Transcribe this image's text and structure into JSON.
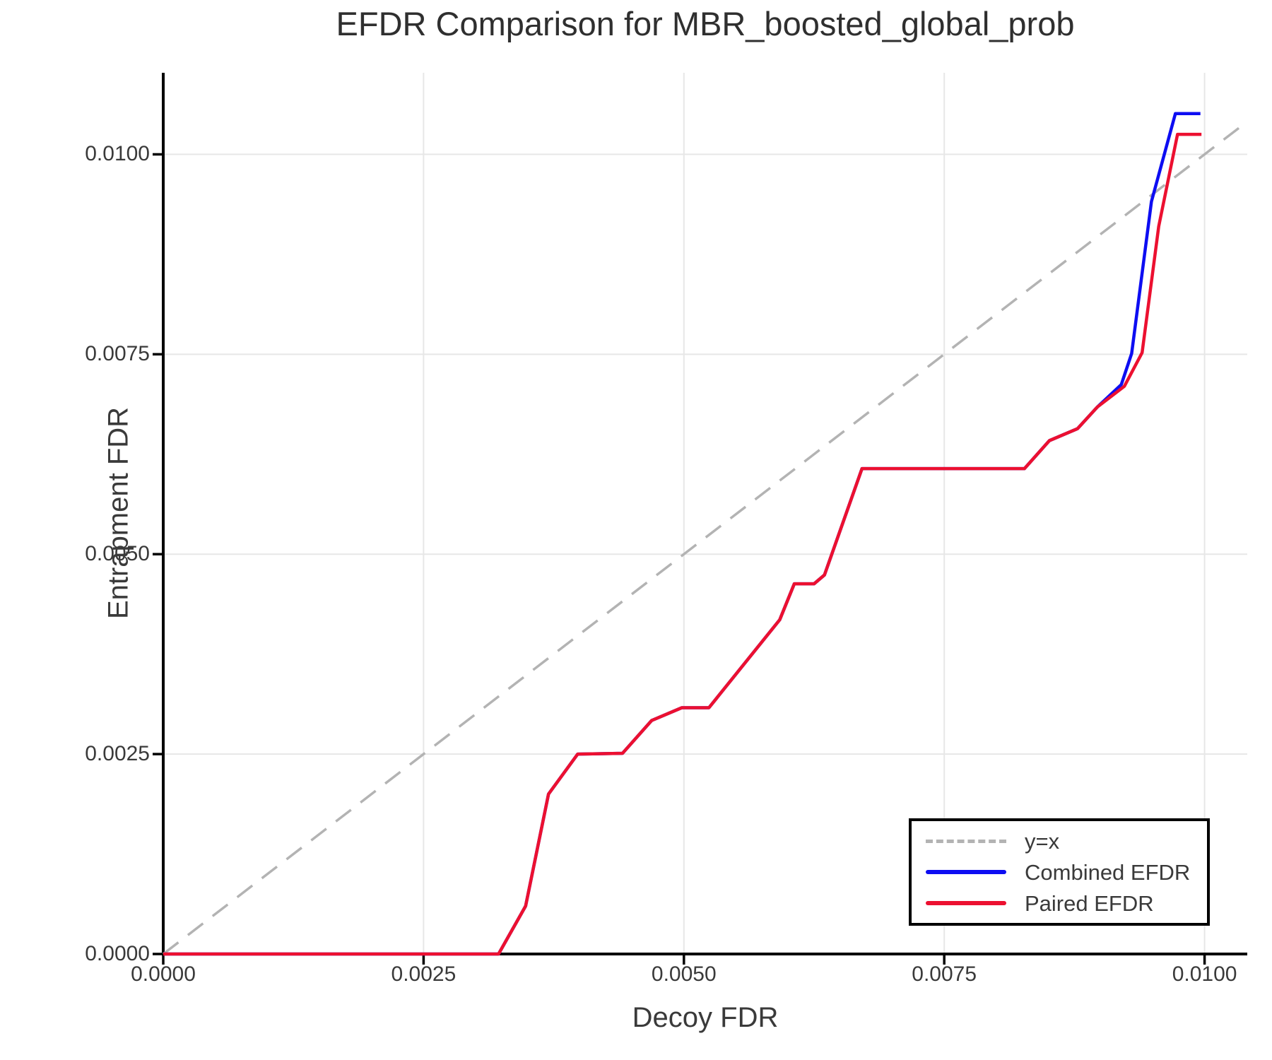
{
  "title": "EFDR Comparison for MBR_boosted_global_prob",
  "chart_data": {
    "type": "line",
    "title": "EFDR Comparison for MBR_boosted_global_prob",
    "xlabel": "Decoy FDR",
    "ylabel": "Entrapment FDR",
    "xlim": [
      0,
      0.01041
    ],
    "ylim": [
      0,
      0.01102
    ],
    "grid": true,
    "legend_position": "lower right",
    "xticks": {
      "values": [
        0,
        0.0025,
        0.005,
        0.0075,
        0.01
      ],
      "labels": [
        "0.0000",
        "0.0025",
        "0.0050",
        "0.0075",
        "0.0100"
      ]
    },
    "yticks": {
      "values": [
        0,
        0.0025,
        0.005,
        0.0075,
        0.01
      ],
      "labels": [
        "0.0000",
        "0.0025",
        "0.0050",
        "0.0075",
        "0.0100"
      ]
    },
    "colors": {
      "grid": "#e7e7e7",
      "spine": "#000000",
      "tick_label": "#3a3a3a",
      "title_text": "#2f2f2f",
      "identity_line": "#b3b3b3",
      "combined": "#0d0df2",
      "paired": "#ec1030"
    },
    "series": [
      {
        "name": "y=x",
        "style": "dashed",
        "color": "#b3b3b3",
        "width": 3.5,
        "points": [
          [
            0,
            0
          ],
          [
            0.01041,
            0.01041
          ]
        ]
      },
      {
        "name": "Combined EFDR",
        "style": "solid",
        "color": "#0d0df2",
        "width": 4.5,
        "points": [
          [
            0.0,
            0.0
          ],
          [
            0.00322,
            0.0
          ],
          [
            0.00348,
            0.0006
          ],
          [
            0.0037,
            0.002
          ],
          [
            0.00398,
            0.0025
          ],
          [
            0.00441,
            0.00251
          ],
          [
            0.00469,
            0.00292
          ],
          [
            0.00498,
            0.00308
          ],
          [
            0.00524,
            0.00308
          ],
          [
            0.00592,
            0.00418
          ],
          [
            0.00606,
            0.00463
          ],
          [
            0.00625,
            0.00463
          ],
          [
            0.00635,
            0.00474
          ],
          [
            0.00671,
            0.00607
          ],
          [
            0.00827,
            0.00607
          ],
          [
            0.00851,
            0.00642
          ],
          [
            0.00878,
            0.00657
          ],
          [
            0.00897,
            0.00684
          ],
          [
            0.0092,
            0.00712
          ],
          [
            0.0093,
            0.00751
          ],
          [
            0.00949,
            0.00941
          ],
          [
            0.00972,
            0.01051
          ],
          [
            0.00996,
            0.01051
          ]
        ]
      },
      {
        "name": "Paired EFDR",
        "style": "solid",
        "color": "#ec1030",
        "width": 4.5,
        "points": [
          [
            0.0,
            0.0
          ],
          [
            0.00322,
            0.0
          ],
          [
            0.00348,
            0.0006
          ],
          [
            0.0037,
            0.002
          ],
          [
            0.00398,
            0.0025
          ],
          [
            0.00441,
            0.00251
          ],
          [
            0.00469,
            0.00292
          ],
          [
            0.00498,
            0.00308
          ],
          [
            0.00524,
            0.00308
          ],
          [
            0.00592,
            0.00418
          ],
          [
            0.00606,
            0.00463
          ],
          [
            0.00625,
            0.00463
          ],
          [
            0.00635,
            0.00474
          ],
          [
            0.00671,
            0.00607
          ],
          [
            0.00827,
            0.00607
          ],
          [
            0.00851,
            0.00642
          ],
          [
            0.00878,
            0.00657
          ],
          [
            0.00897,
            0.00684
          ],
          [
            0.00923,
            0.0071
          ],
          [
            0.0094,
            0.00752
          ],
          [
            0.00956,
            0.0091
          ],
          [
            0.00974,
            0.01025
          ],
          [
            0.00997,
            0.01025
          ]
        ]
      }
    ]
  }
}
